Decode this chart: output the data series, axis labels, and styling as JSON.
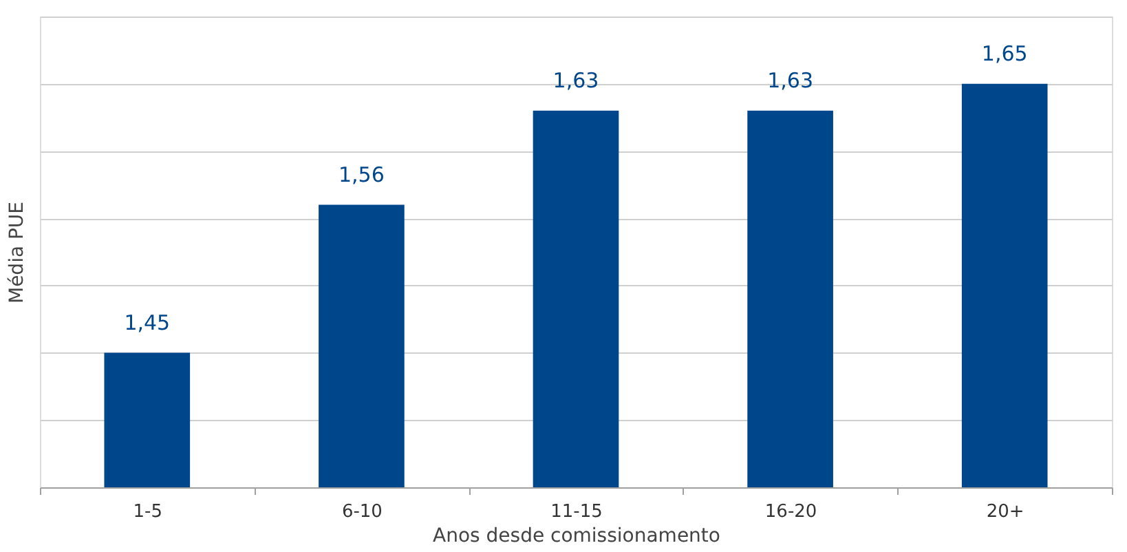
{
  "chart_data": {
    "type": "bar",
    "xlabel": "Anos desde comissionamento",
    "ylabel": "Média PUE",
    "categories": [
      "1-5",
      "6-10",
      "11-15",
      "16-20",
      "20+"
    ],
    "values": [
      1.45,
      1.56,
      1.63,
      1.63,
      1.65
    ],
    "value_labels": [
      "1,45",
      "1,56",
      "1,63",
      "1,63",
      "1,65"
    ],
    "color": "#00468b",
    "ylim": [
      1.35,
      1.7
    ],
    "yticks": [
      {
        "value": 1.35,
        "label": null
      },
      {
        "value": 1.4,
        "label": null
      },
      {
        "value": 1.45,
        "label": null
      },
      {
        "value": 1.5,
        "label": null
      },
      {
        "value": 1.55,
        "label": null
      },
      {
        "value": 1.6,
        "label": null
      },
      {
        "value": 1.65,
        "label": null
      },
      {
        "value": 1.7,
        "label": null
      }
    ],
    "tick_labels": "x",
    "grid": "y"
  }
}
